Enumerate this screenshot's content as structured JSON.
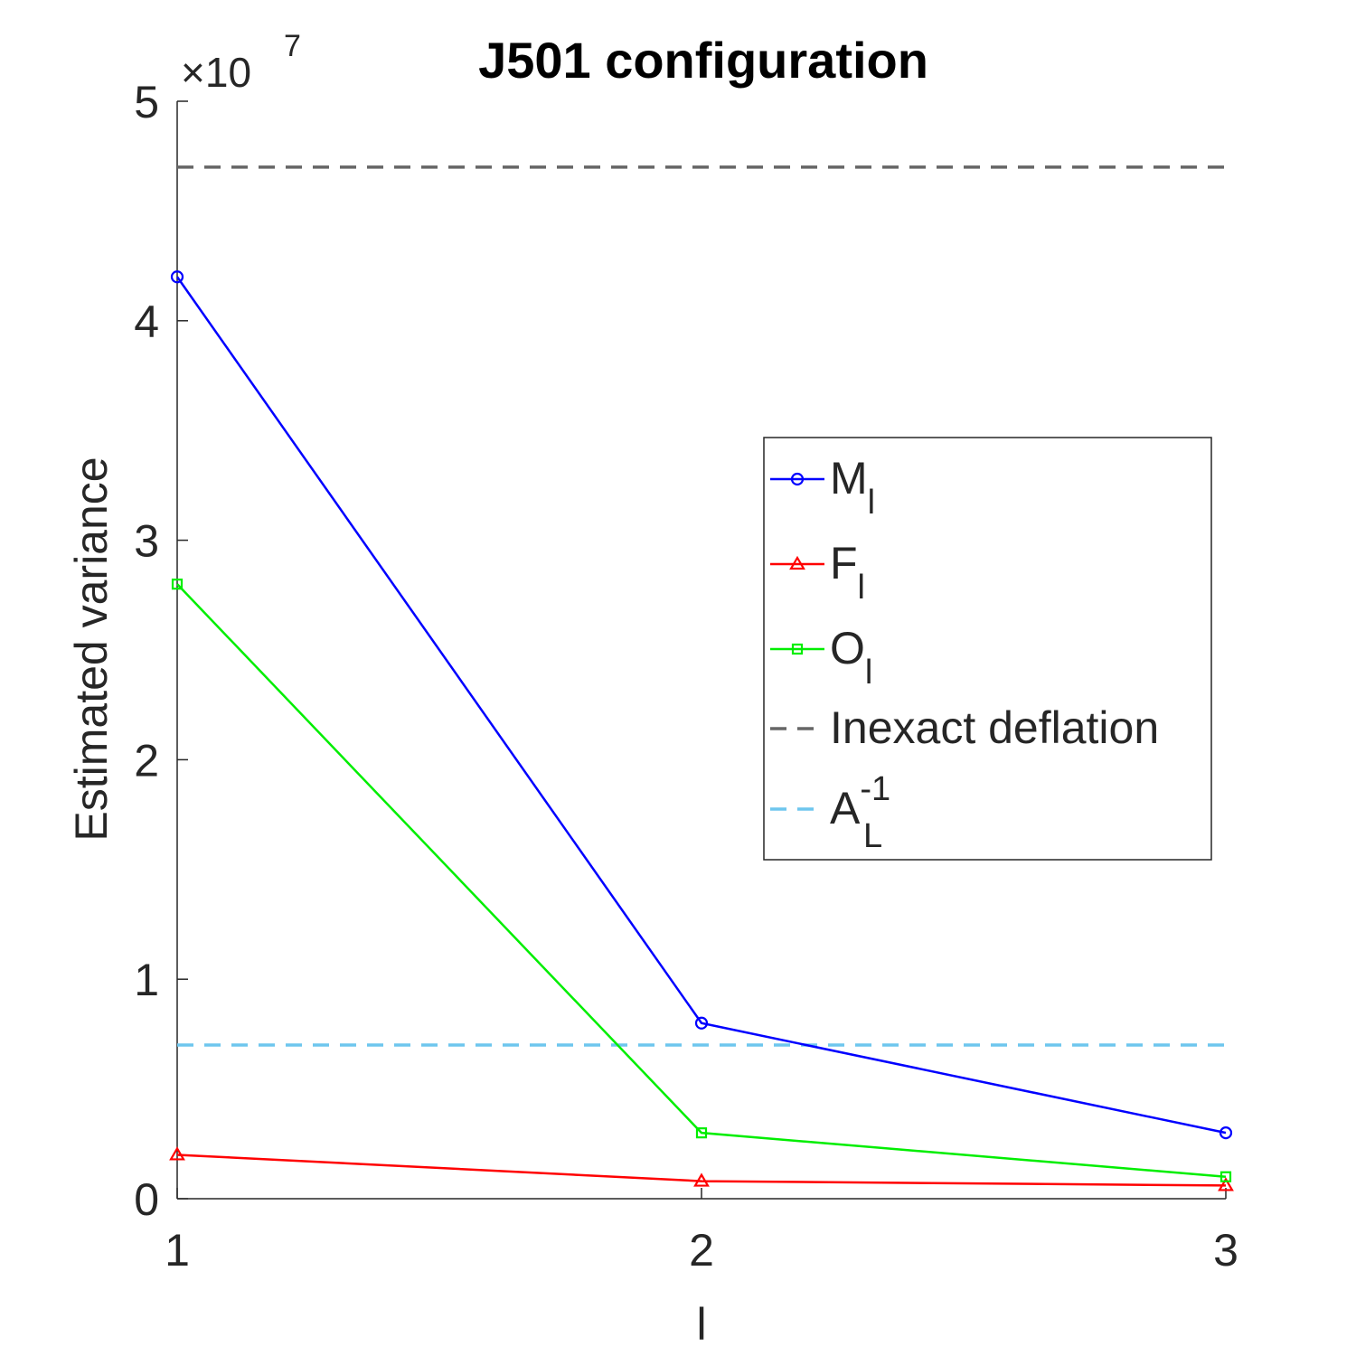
{
  "chart_data": {
    "type": "line",
    "title": "J501 configuration",
    "xlabel": "l",
    "ylabel": "Estimated variance",
    "x": [
      1,
      2,
      3
    ],
    "xlim": [
      1,
      3
    ],
    "ylim": [
      0,
      50000000
    ],
    "x_ticks": [
      "1",
      "2",
      "3"
    ],
    "y_ticks": [
      "0",
      "1",
      "2",
      "3",
      "4",
      "5"
    ],
    "y_tick_values": [
      0,
      10000000,
      20000000,
      30000000,
      40000000,
      50000000
    ],
    "y_exponent_base": "×10",
    "y_exponent_power": "7",
    "grid": false,
    "legend_position": "right",
    "series": [
      {
        "name": "M",
        "subscript": "l",
        "color": "#0000ff",
        "marker": "circle",
        "values": [
          42000000,
          8000000,
          3000000
        ]
      },
      {
        "name": "F",
        "subscript": "l",
        "color": "#ff0000",
        "marker": "triangle",
        "values": [
          2000000,
          800000,
          600000
        ]
      },
      {
        "name": "O",
        "subscript": "l",
        "color": "#00ee00",
        "marker": "square",
        "values": [
          28000000,
          3000000,
          1000000
        ]
      }
    ],
    "reference_lines": [
      {
        "name": "Inexact deflation",
        "color": "#666666",
        "value": 47000000
      },
      {
        "name": "A",
        "subscript": "L",
        "superscript": "-1",
        "color": "#6ec6ee",
        "value": 7000000
      }
    ]
  }
}
